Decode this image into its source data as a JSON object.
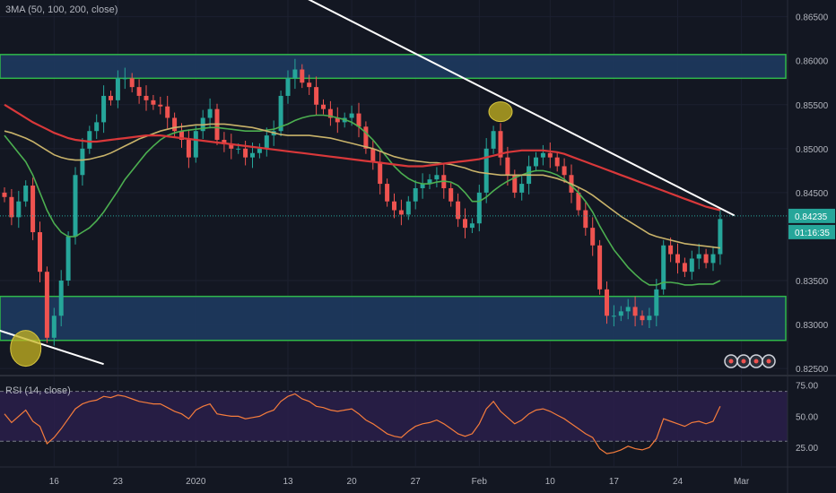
{
  "chart_data": [
    {
      "type": "candlestick",
      "title": "3MA (50, 100, 200, close)",
      "x_ticks": [
        {
          "label": "16",
          "bar": 7
        },
        {
          "label": "23",
          "bar": 16
        },
        {
          "label": "2020",
          "bar": 27
        },
        {
          "label": "13",
          "bar": 40
        },
        {
          "label": "20",
          "bar": 49
        },
        {
          "label": "27",
          "bar": 58
        },
        {
          "label": "Feb",
          "bar": 67
        },
        {
          "label": "10",
          "bar": 77
        },
        {
          "label": "17",
          "bar": 86
        },
        {
          "label": "24",
          "bar": 95
        },
        {
          "label": "Mar",
          "bar": 104
        }
      ],
      "y_ticks": [
        "0.86500",
        "0.86000",
        "0.85500",
        "0.85000",
        "0.84500",
        "0.83500",
        "0.83000",
        "0.82500"
      ],
      "ylim": [
        0.8243,
        0.8669
      ],
      "price_axis_labels": {
        "last_price": "0.84235",
        "countdown": "01:16:35"
      },
      "zones": [
        {
          "from": 0.858,
          "to": 0.8607
        },
        {
          "from": 0.8282,
          "to": 0.8332
        }
      ],
      "close": [
        0.8445,
        0.8422,
        0.844,
        0.8458,
        0.8405,
        0.836,
        0.8285,
        0.831,
        0.835,
        0.84,
        0.847,
        0.85,
        0.852,
        0.853,
        0.856,
        0.8555,
        0.858,
        0.858,
        0.857,
        0.856,
        0.8555,
        0.855,
        0.8548,
        0.8535,
        0.852,
        0.851,
        0.849,
        0.852,
        0.8535,
        0.8545,
        0.851,
        0.8505,
        0.85,
        0.85,
        0.849,
        0.8495,
        0.85,
        0.8515,
        0.852,
        0.856,
        0.858,
        0.859,
        0.8575,
        0.857,
        0.855,
        0.8545,
        0.8535,
        0.853,
        0.8535,
        0.854,
        0.8525,
        0.85,
        0.8485,
        0.846,
        0.844,
        0.843,
        0.8425,
        0.844,
        0.8455,
        0.846,
        0.8465,
        0.847,
        0.8455,
        0.844,
        0.842,
        0.841,
        0.8415,
        0.845,
        0.85,
        0.852,
        0.849,
        0.847,
        0.845,
        0.846,
        0.848,
        0.849,
        0.8495,
        0.849,
        0.848,
        0.847,
        0.845,
        0.843,
        0.841,
        0.839,
        0.834,
        0.831,
        0.831,
        0.8315,
        0.832,
        0.831,
        0.8305,
        0.831,
        0.834,
        0.839,
        0.838,
        0.837,
        0.836,
        0.8375,
        0.838,
        0.837,
        0.838,
        0.842
      ],
      "series": [
        {
          "name": "50",
          "values": [
            0.8515,
            0.8505,
            0.8495,
            0.8485,
            0.847,
            0.845,
            0.843,
            0.8415,
            0.8405,
            0.84,
            0.84,
            0.8405,
            0.841,
            0.8418,
            0.8428,
            0.844,
            0.8452,
            0.8465,
            0.8475,
            0.8485,
            0.8495,
            0.8503,
            0.851,
            0.8515,
            0.8518,
            0.852,
            0.8521,
            0.8522,
            0.8523,
            0.8524,
            0.8524,
            0.8523,
            0.8522,
            0.8521,
            0.852,
            0.852,
            0.852,
            0.8521,
            0.8522,
            0.8525,
            0.8528,
            0.8532,
            0.8535,
            0.8537,
            0.8538,
            0.8538,
            0.8537,
            0.8535,
            0.8533,
            0.853,
            0.8525,
            0.8518,
            0.851,
            0.85,
            0.849,
            0.848,
            0.8472,
            0.8466,
            0.8462,
            0.846,
            0.846,
            0.8462,
            0.8463,
            0.8462,
            0.8458,
            0.845,
            0.844,
            0.844,
            0.8445,
            0.8452,
            0.8458,
            0.8463,
            0.8467,
            0.847,
            0.8473,
            0.8475,
            0.8475,
            0.8473,
            0.847,
            0.8465,
            0.8458,
            0.845,
            0.844,
            0.8428,
            0.8412,
            0.8398,
            0.8385,
            0.8375,
            0.8365,
            0.8357,
            0.835,
            0.8345,
            0.8345,
            0.8348,
            0.8348,
            0.8347,
            0.8345,
            0.8345,
            0.8346,
            0.8346,
            0.8346,
            0.835
          ]
        },
        {
          "name": "100",
          "values": [
            0.852,
            0.8518,
            0.8515,
            0.8512,
            0.8508,
            0.8503,
            0.8498,
            0.8493,
            0.849,
            0.8488,
            0.8487,
            0.8487,
            0.8488,
            0.849,
            0.8492,
            0.8495,
            0.8499,
            0.8503,
            0.8507,
            0.8511,
            0.8514,
            0.8517,
            0.852,
            0.8522,
            0.8524,
            0.8525,
            0.8526,
            0.8527,
            0.8527,
            0.8528,
            0.8528,
            0.8528,
            0.8527,
            0.8526,
            0.8525,
            0.8524,
            0.8522,
            0.852,
            0.8518,
            0.8516,
            0.8515,
            0.8515,
            0.8515,
            0.8515,
            0.8514,
            0.8513,
            0.8512,
            0.851,
            0.8508,
            0.8506,
            0.8504,
            0.8502,
            0.85,
            0.8497,
            0.8494,
            0.8491,
            0.8489,
            0.8487,
            0.8486,
            0.8485,
            0.8484,
            0.8484,
            0.8483,
            0.8482,
            0.848,
            0.8478,
            0.8475,
            0.8473,
            0.8472,
            0.8471,
            0.847,
            0.847,
            0.847,
            0.847,
            0.847,
            0.847,
            0.847,
            0.8468,
            0.8466,
            0.8463,
            0.846,
            0.8456,
            0.8452,
            0.8447,
            0.8441,
            0.8435,
            0.8429,
            0.8423,
            0.8418,
            0.8413,
            0.8408,
            0.8403,
            0.84,
            0.8398,
            0.8396,
            0.8394,
            0.8392,
            0.8391,
            0.839,
            0.8389,
            0.8388,
            0.8387
          ]
        },
        {
          "name": "200",
          "values": [
            0.855,
            0.8545,
            0.854,
            0.8535,
            0.853,
            0.8526,
            0.8522,
            0.8518,
            0.8515,
            0.8512,
            0.851,
            0.8509,
            0.8508,
            0.8508,
            0.8509,
            0.851,
            0.8511,
            0.8512,
            0.8513,
            0.8514,
            0.8515,
            0.8515,
            0.8515,
            0.8514,
            0.8513,
            0.8512,
            0.8511,
            0.851,
            0.8509,
            0.8508,
            0.8507,
            0.8506,
            0.8505,
            0.8504,
            0.8503,
            0.8502,
            0.8501,
            0.85,
            0.8499,
            0.8498,
            0.8497,
            0.8496,
            0.8495,
            0.8494,
            0.8493,
            0.8492,
            0.8491,
            0.849,
            0.8489,
            0.8488,
            0.8487,
            0.8486,
            0.8485,
            0.8484,
            0.8483,
            0.8482,
            0.8481,
            0.848,
            0.848,
            0.848,
            0.8481,
            0.8482,
            0.8483,
            0.8484,
            0.8485,
            0.8486,
            0.8487,
            0.8488,
            0.849,
            0.8492,
            0.8494,
            0.8496,
            0.8497,
            0.8498,
            0.8498,
            0.8498,
            0.8498,
            0.8497,
            0.8496,
            0.8494,
            0.8491,
            0.8488,
            0.8485,
            0.8482,
            0.8479,
            0.8476,
            0.8473,
            0.847,
            0.8467,
            0.8464,
            0.8461,
            0.8458,
            0.8455,
            0.8452,
            0.8449,
            0.8446,
            0.8443,
            0.844,
            0.8437,
            0.8434,
            0.8432,
            0.843
          ]
        }
      ],
      "trendlines": [
        {
          "from": {
            "bar": 36,
            "price": 0.8698
          },
          "to": {
            "bar": 103,
            "price": 0.8424
          }
        },
        {
          "from": {
            "bar": -1,
            "price": 0.8294
          },
          "to": {
            "bar": 14,
            "price": 0.8255
          }
        }
      ],
      "highlights": [
        {
          "bar": 3,
          "price": 0.8273
        },
        {
          "bar": 70,
          "price": 0.8542
        }
      ],
      "color_50": "#4caf50",
      "color_100": "#c9b36a",
      "color_200": "#d9383a",
      "color_up": "#26a69a",
      "color_down": "#ef5350",
      "zone_fill": "#1e3a5f",
      "zone_border": "#2fb84a"
    },
    {
      "type": "line",
      "title": "RSI (14, close)",
      "y_ticks": [
        "75.00",
        "50.00",
        "25.00"
      ],
      "ylim": [
        10,
        82
      ],
      "levels": [
        70,
        30
      ],
      "values": [
        52,
        45,
        50,
        55,
        46,
        42,
        28,
        33,
        40,
        48,
        56,
        60,
        62,
        63,
        66,
        65,
        67,
        66,
        64,
        62,
        61,
        60,
        60,
        57,
        54,
        52,
        48,
        55,
        58,
        60,
        52,
        51,
        50,
        50,
        48,
        49,
        50,
        53,
        55,
        62,
        66,
        68,
        64,
        62,
        58,
        57,
        55,
        54,
        55,
        56,
        52,
        47,
        44,
        40,
        36,
        34,
        33,
        38,
        42,
        44,
        45,
        47,
        44,
        40,
        36,
        34,
        36,
        44,
        56,
        62,
        54,
        49,
        44,
        47,
        52,
        55,
        56,
        54,
        51,
        48,
        44,
        40,
        36,
        33,
        24,
        20,
        21,
        23,
        26,
        24,
        23,
        25,
        32,
        48,
        46,
        44,
        42,
        45,
        46,
        44,
        46,
        58
      ],
      "color": "#f57c3c"
    }
  ]
}
